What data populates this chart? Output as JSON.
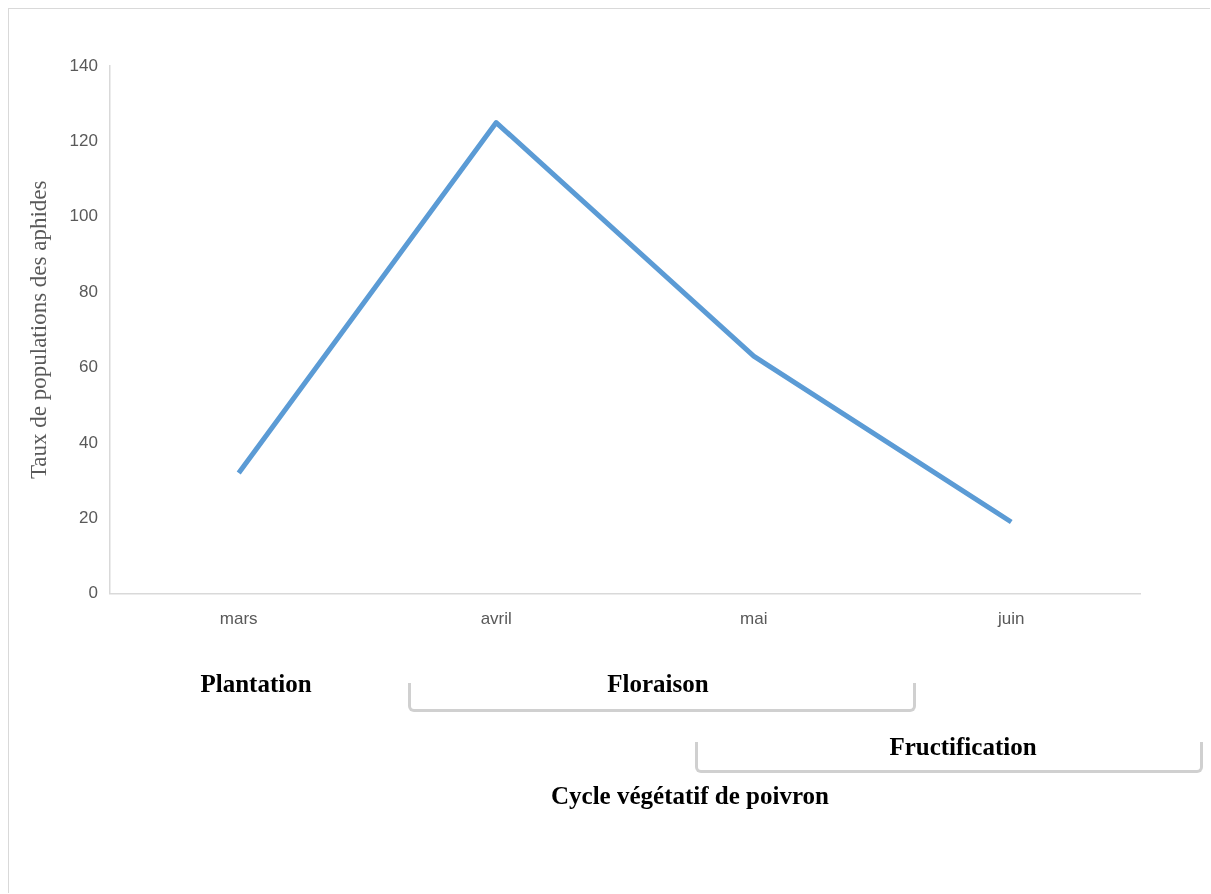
{
  "chart_data": {
    "type": "line",
    "ylabel": "Taux de populations des aphides",
    "categories": [
      "mars",
      "avril",
      "mai",
      "juin"
    ],
    "series": [
      {
        "color": "#5b9bd5",
        "values": [
          32,
          125,
          63,
          19
        ]
      }
    ],
    "ylim": [
      0,
      140
    ],
    "yticks": [
      0,
      20,
      40,
      60,
      80,
      100,
      120,
      140
    ],
    "grid": false,
    "legend": false,
    "marker": "none",
    "line_style": "solid",
    "annotations": [
      "Plantation",
      "Floraison",
      "Fructification",
      "Cycle végétatif de poivron"
    ]
  }
}
